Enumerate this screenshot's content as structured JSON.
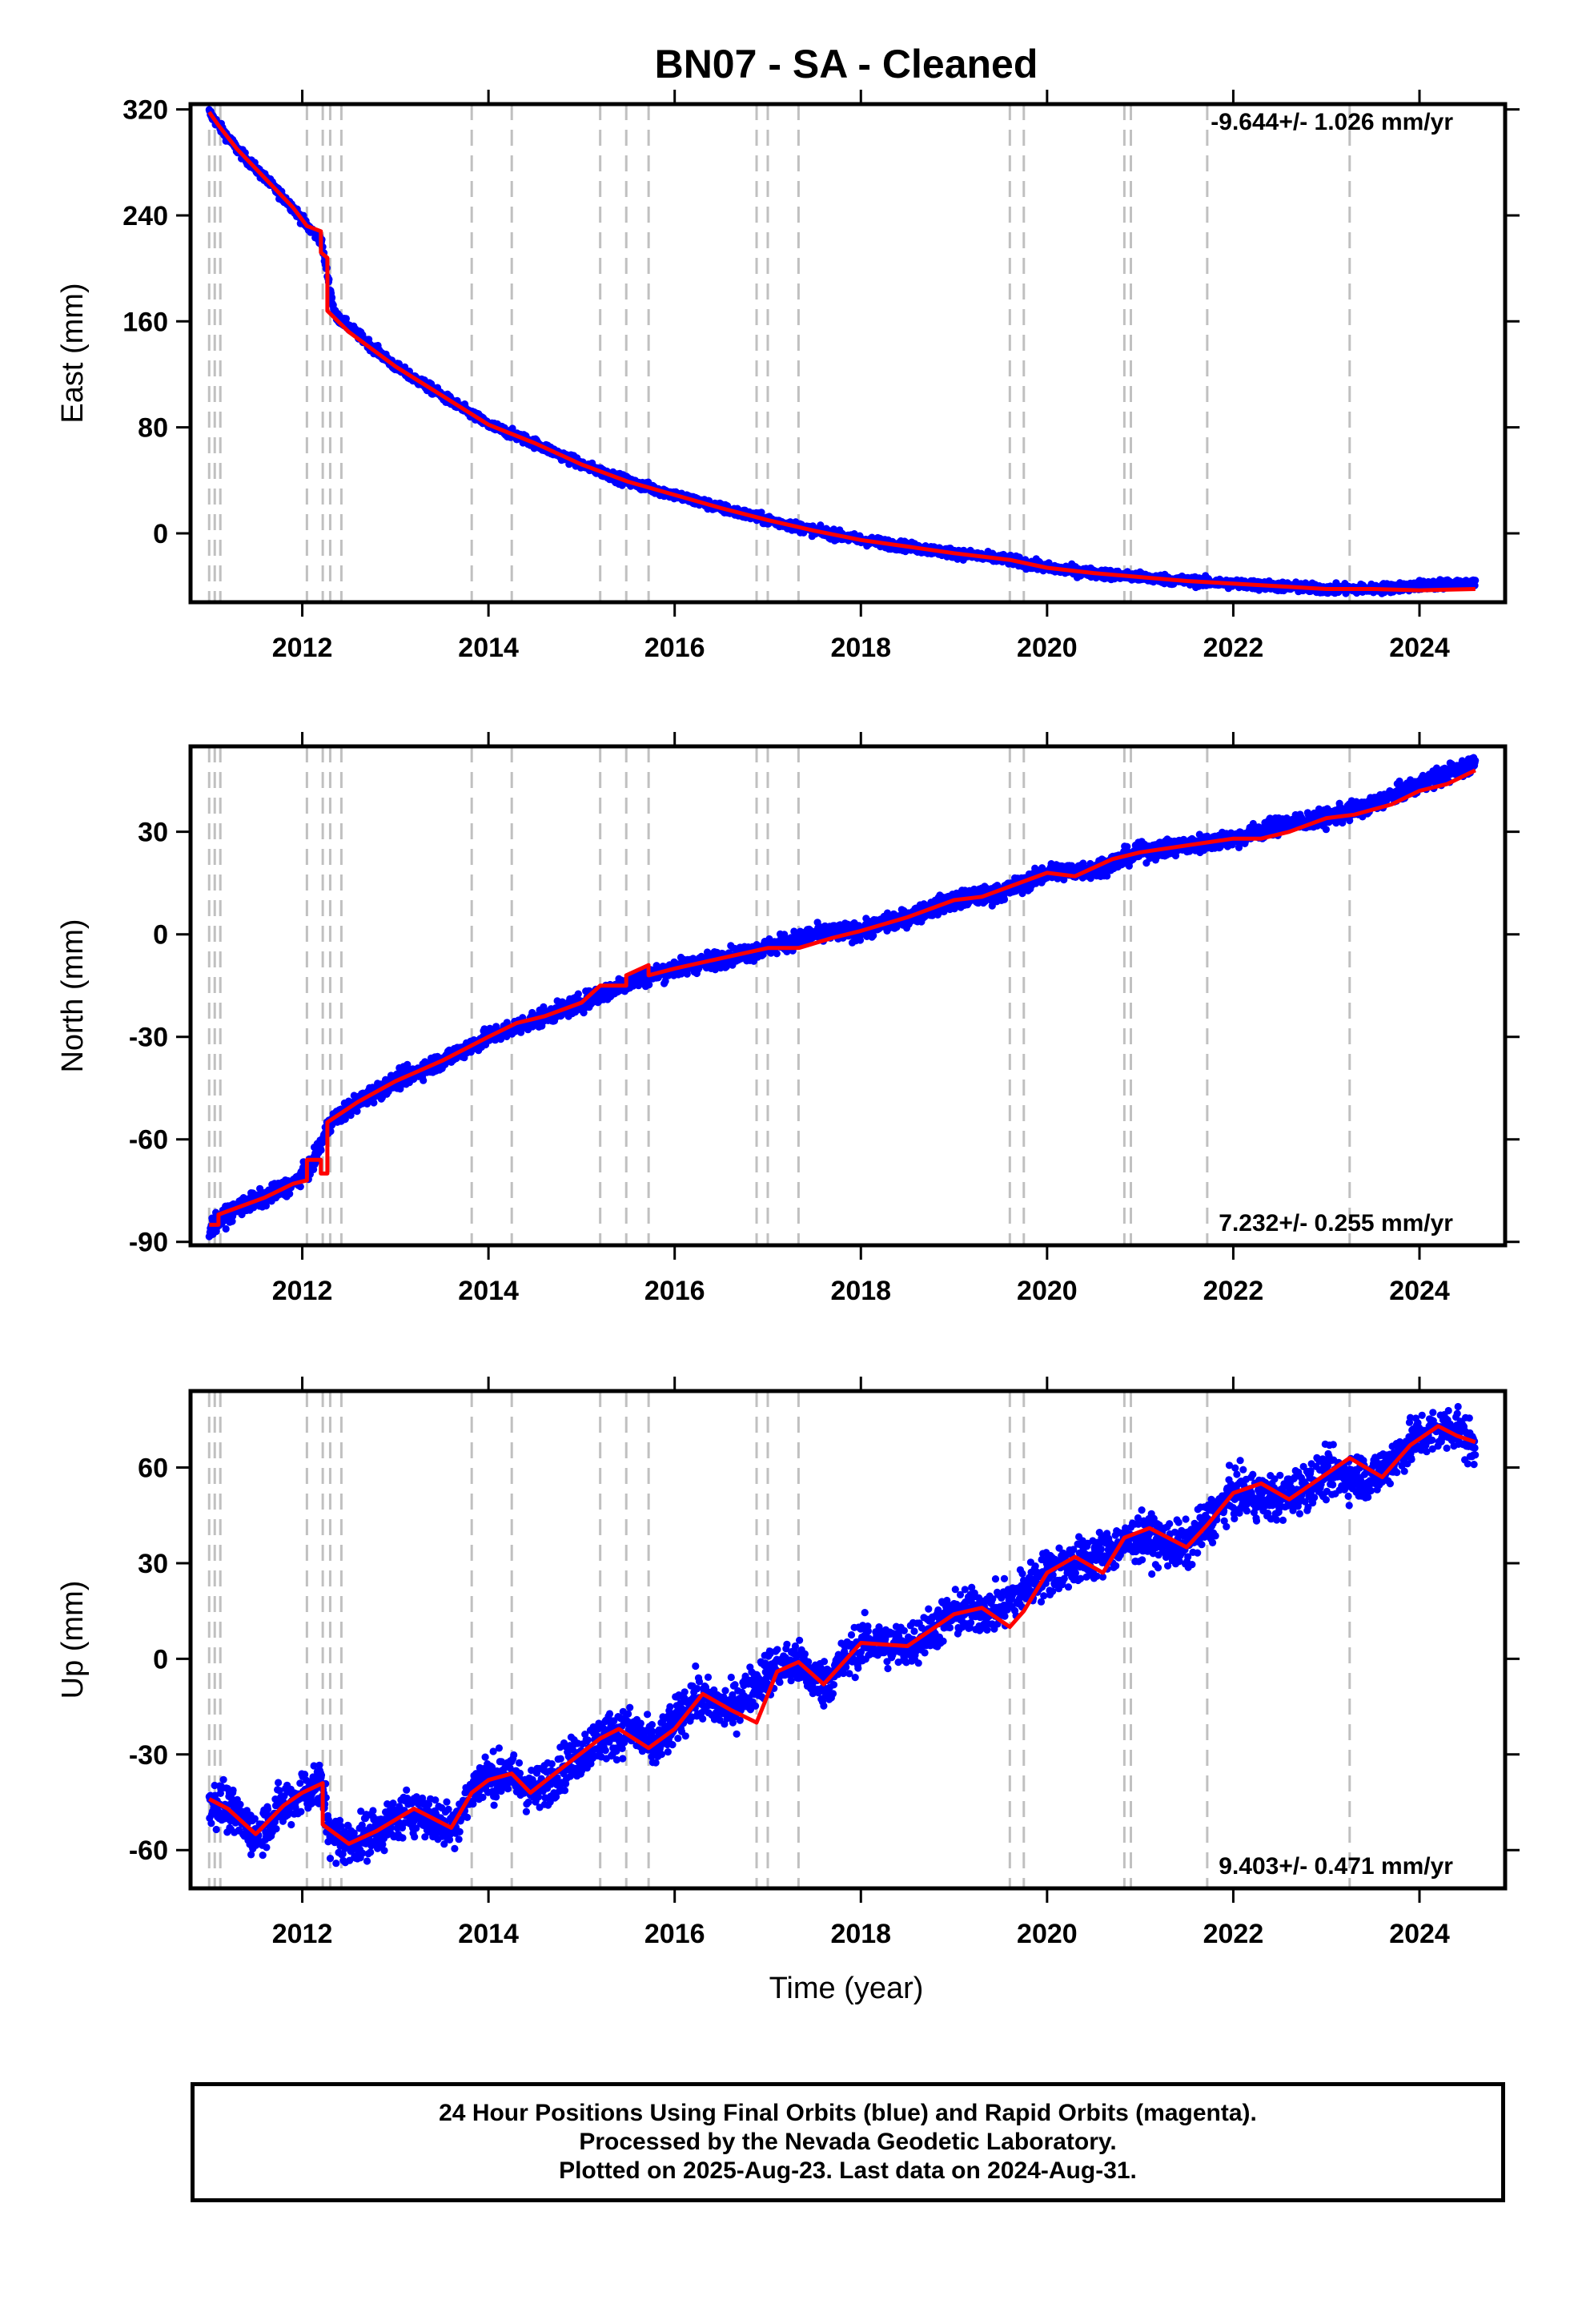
{
  "figure": {
    "title": "BN07  - SA - Cleaned",
    "xlabel": "Time (year)"
  },
  "colors": {
    "data_points": "#0000ff",
    "model_line": "#ff0000",
    "event_lines": "#c0c0c0",
    "frame": "#000000"
  },
  "footer": {
    "line1": "24 Hour Positions Using Final Orbits (blue) and Rapid Orbits (magenta).",
    "line2": "Processed by the Nevada Geodetic Laboratory.",
    "line3": "Plotted on 2025-Aug-23. Last data on 2024-Aug-31."
  },
  "chart_data": [
    {
      "type": "scatter",
      "component": "East",
      "ylabel": "East (mm)",
      "rate_text": "-9.644+/- 1.026 mm/yr",
      "rate_position": "top-right",
      "xlim": [
        2010.8,
        2024.92
      ],
      "ylim": [
        -52,
        324
      ],
      "yticks": [
        320,
        240,
        160,
        80,
        0
      ],
      "xticks": [
        2012,
        2014,
        2016,
        2018,
        2020,
        2022,
        2024
      ],
      "trend_line": {
        "x": [
          2011.0,
          2011.1,
          2011.3,
          2011.6,
          2011.9,
          2012.05,
          2012.2,
          2012.2,
          2012.27,
          2012.27,
          2012.5,
          2013.0,
          2013.5,
          2014.0,
          2014.5,
          2015.0,
          2015.5,
          2016.0,
          2016.5,
          2017.0,
          2017.5,
          2018.0,
          2018.5,
          2019.0,
          2019.6,
          2020.0,
          2020.5,
          2021.0,
          2021.5,
          2022.0,
          2022.5,
          2023.0,
          2023.5,
          2024.0,
          2024.6
        ],
        "y": [
          318,
          308,
          290,
          268,
          246,
          232,
          228,
          212,
          208,
          168,
          152,
          126,
          104,
          82,
          68,
          52,
          39,
          29,
          19,
          10,
          2,
          -5,
          -10,
          -15,
          -20,
          -26,
          -30,
          -33,
          -36,
          -38,
          -40,
          -42,
          -42,
          -43,
          -42
        ]
      },
      "observations": {
        "x": [
          2011.0,
          2011.1,
          2011.3,
          2011.6,
          2011.9,
          2012.05,
          2012.2,
          2012.35,
          2012.6,
          2013.0,
          2013.5,
          2014.0,
          2014.5,
          2015.0,
          2015.5,
          2016.0,
          2016.5,
          2017.0,
          2017.5,
          2018.0,
          2018.5,
          2019.0,
          2019.6,
          2020.0,
          2020.5,
          2021.0,
          2021.5,
          2022.0,
          2022.5,
          2023.0,
          2023.5,
          2024.3,
          2024.6
        ],
        "y": [
          318,
          308,
          290,
          268,
          246,
          232,
          222,
          165,
          150,
          126,
          104,
          82,
          68,
          52,
          39,
          29,
          19,
          10,
          2,
          -5,
          -10,
          -15,
          -20,
          -26,
          -30,
          -33,
          -36,
          -38,
          -40,
          -42,
          -42,
          -38,
          -38
        ],
        "scatter_mm": 3.5
      },
      "event_years": [
        2011.0,
        2011.06,
        2011.12,
        2012.05,
        2012.22,
        2012.3,
        2012.42,
        2013.82,
        2014.25,
        2015.2,
        2015.48,
        2015.72,
        2016.88,
        2017.0,
        2017.33,
        2019.6,
        2019.75,
        2020.83,
        2020.9,
        2021.72,
        2023.25
      ]
    },
    {
      "type": "scatter",
      "component": "North",
      "ylabel": "North (mm)",
      "rate_text": "7.232+/- 0.255 mm/yr",
      "rate_position": "bottom-right",
      "xlim": [
        2010.8,
        2024.92
      ],
      "ylim": [
        -91,
        55
      ],
      "yticks": [
        30,
        0,
        -30,
        -60,
        -90
      ],
      "xticks": [
        2012,
        2014,
        2016,
        2018,
        2020,
        2022,
        2024
      ],
      "trend_line": {
        "x": [
          2011.0,
          2011.1,
          2011.1,
          2011.3,
          2011.6,
          2011.9,
          2012.05,
          2012.05,
          2012.2,
          2012.2,
          2012.27,
          2012.27,
          2012.6,
          2013.0,
          2013.5,
          2014.0,
          2014.3,
          2014.6,
          2015.0,
          2015.2,
          2015.48,
          2015.48,
          2015.72,
          2015.72,
          2016.0,
          2016.5,
          2017.0,
          2017.33,
          2017.7,
          2018.0,
          2018.5,
          2019.0,
          2019.3,
          2019.6,
          2020.0,
          2020.3,
          2020.7,
          2021.0,
          2021.5,
          2022.0,
          2022.3,
          2022.6,
          2023.0,
          2023.3,
          2023.7,
          2024.0,
          2024.3,
          2024.6
        ],
        "y": [
          -85,
          -85,
          -82,
          -80,
          -77,
          -73,
          -72,
          -66,
          -66,
          -70,
          -70,
          -55,
          -49,
          -43,
          -37,
          -30,
          -26,
          -24,
          -20,
          -15,
          -15,
          -12,
          -9,
          -12,
          -10,
          -7,
          -4,
          -4,
          -1,
          1,
          5,
          10,
          11,
          14,
          18,
          17,
          22,
          24,
          26,
          28,
          28,
          30,
          34,
          35,
          38,
          42,
          44,
          48
        ],
        "note": ""
      },
      "observations": {
        "x": [
          2011.0,
          2011.3,
          2011.6,
          2011.9,
          2012.1,
          2012.3,
          2012.6,
          2013.0,
          2013.5,
          2014.0,
          2014.5,
          2015.0,
          2015.5,
          2016.0,
          2016.5,
          2017.0,
          2017.5,
          2018.0,
          2018.5,
          2019.0,
          2019.5,
          2020.0,
          2020.5,
          2021.0,
          2021.5,
          2022.0,
          2022.5,
          2023.0,
          2023.5,
          2024.0,
          2024.6
        ],
        "y": [
          -86,
          -80,
          -77,
          -73,
          -68,
          -55,
          -49,
          -43,
          -37,
          -30,
          -25,
          -20,
          -14,
          -10,
          -7,
          -4,
          0,
          1,
          5,
          10,
          12,
          18,
          19,
          24,
          26,
          28,
          32,
          34,
          38,
          44,
          50
        ],
        "scatter_mm": 2.5
      },
      "event_years": [
        2011.0,
        2011.06,
        2011.12,
        2012.05,
        2012.22,
        2012.3,
        2012.42,
        2013.82,
        2014.25,
        2015.2,
        2015.48,
        2015.72,
        2016.88,
        2017.0,
        2017.33,
        2019.6,
        2019.75,
        2020.83,
        2020.9,
        2021.72,
        2023.25
      ]
    },
    {
      "type": "scatter",
      "component": "Up",
      "ylabel": "Up (mm)",
      "rate_text": "9.403+/- 0.471 mm/yr",
      "rate_position": "bottom-right",
      "xlim": [
        2010.8,
        2024.92
      ],
      "ylim": [
        -72,
        84
      ],
      "yticks": [
        60,
        30,
        0,
        -30,
        -60
      ],
      "xticks": [
        2012,
        2014,
        2016,
        2018,
        2020,
        2022,
        2024
      ],
      "trend_line": {
        "x": [
          2011.0,
          2011.2,
          2011.5,
          2011.8,
          2012.0,
          2012.22,
          2012.22,
          2012.5,
          2012.8,
          2013.2,
          2013.6,
          2013.82,
          2014.0,
          2014.25,
          2014.45,
          2014.8,
          2015.2,
          2015.4,
          2015.72,
          2016.0,
          2016.3,
          2016.6,
          2016.88,
          2017.1,
          2017.33,
          2017.6,
          2018.0,
          2018.5,
          2019.0,
          2019.3,
          2019.6,
          2019.75,
          2020.0,
          2020.3,
          2020.6,
          2020.83,
          2021.1,
          2021.5,
          2021.72,
          2022.0,
          2022.3,
          2022.6,
          2023.0,
          2023.25,
          2023.6,
          2023.9,
          2024.2,
          2024.4,
          2024.6
        ],
        "y": [
          -44,
          -47,
          -55,
          -46,
          -42,
          -39,
          -52,
          -58,
          -54,
          -47,
          -53,
          -42,
          -38,
          -36,
          -42,
          -34,
          -25,
          -22,
          -28,
          -22,
          -11,
          -16,
          -20,
          -4,
          -1,
          -8,
          5,
          4,
          14,
          16,
          10,
          15,
          27,
          32,
          27,
          38,
          41,
          35,
          42,
          52,
          55,
          50,
          58,
          63,
          57,
          67,
          73,
          70,
          68
        ]
      },
      "observations": {
        "x": [
          2011.0,
          2011.2,
          2011.5,
          2011.8,
          2012.0,
          2012.2,
          2012.3,
          2012.5,
          2012.8,
          2013.2,
          2013.6,
          2013.9,
          2014.2,
          2014.5,
          2014.8,
          2015.2,
          2015.5,
          2015.8,
          2016.2,
          2016.6,
          2017.0,
          2017.3,
          2017.6,
          2018.0,
          2018.5,
          2019.0,
          2019.5,
          2020.0,
          2020.5,
          2021.0,
          2021.5,
          2022.0,
          2022.5,
          2023.0,
          2023.5,
          2024.0,
          2024.4,
          2024.6
        ],
        "y": [
          -44,
          -47,
          -55,
          -46,
          -42,
          -39,
          -55,
          -58,
          -54,
          -47,
          -53,
          -38,
          -36,
          -42,
          -34,
          -25,
          -22,
          -28,
          -12,
          -16,
          -4,
          -1,
          -8,
          5,
          4,
          14,
          16,
          27,
          32,
          38,
          35,
          52,
          50,
          58,
          57,
          70,
          73,
          65
        ],
        "scatter_mm": 7
      },
      "event_years": [
        2011.0,
        2011.06,
        2011.12,
        2012.05,
        2012.22,
        2012.3,
        2012.42,
        2013.82,
        2014.25,
        2015.2,
        2015.48,
        2015.72,
        2016.88,
        2017.0,
        2017.33,
        2019.6,
        2019.75,
        2020.83,
        2020.9,
        2021.72,
        2023.25
      ]
    }
  ]
}
